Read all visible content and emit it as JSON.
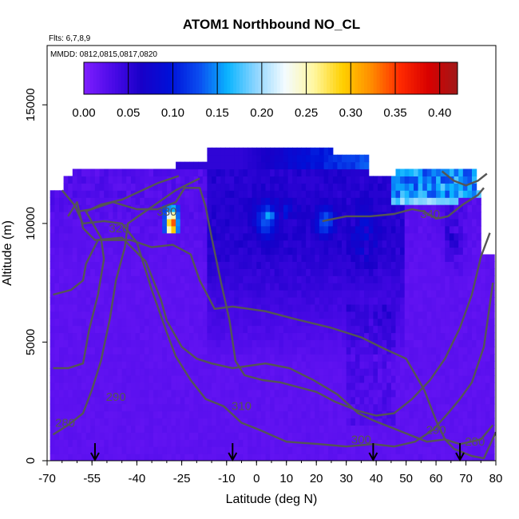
{
  "chart_data": {
    "type": "heatmap",
    "title": "ATOM1 Northbound NO_CL",
    "subtitle_flights": "Flts: 6,7,8,9",
    "subtitle_dates": "MMDD: 0812,0815,0817,0820",
    "xlabel": "Latitude (deg N)",
    "ylabel": "Altitude (m)",
    "xlim": [
      -70,
      80
    ],
    "ylim": [
      0,
      17500
    ],
    "x_ticks": [
      -70,
      -55,
      -40,
      -25,
      -10,
      0,
      10,
      20,
      30,
      40,
      50,
      60,
      70,
      80
    ],
    "y_ticks": [
      0,
      5000,
      10000,
      15000
    ],
    "colorbar": {
      "range": [
        0,
        0.42
      ],
      "ticks": [
        0.0,
        0.05,
        0.1,
        0.15,
        0.2,
        0.25,
        0.3,
        0.35,
        0.4
      ],
      "tick_labels": [
        "0.00",
        "0.05",
        "0.10",
        "0.15",
        "0.20",
        "0.25",
        "0.30",
        "0.35",
        "0.40"
      ],
      "colors": [
        "#7f1fff",
        "#4b0ae8",
        "#1800c8",
        "#0010d8",
        "#0a4cf0",
        "#0ab4ff",
        "#8fd6ff",
        "#f4fbff",
        "#fff7a0",
        "#ffd000",
        "#ff8c00",
        "#ff2a00",
        "#d80000",
        "#a01818"
      ]
    },
    "flight_profile_markers_lat": [
      -54,
      -8,
      39,
      68
    ],
    "contours": [
      {
        "level": "280",
        "label": "280",
        "points": [
          [
            -68,
            1100
          ],
          [
            -63,
            1500
          ],
          [
            -58,
            2000
          ],
          [
            -55,
            3000
          ],
          [
            -52,
            4200
          ],
          [
            -49,
            6000
          ],
          [
            -47,
            7600
          ],
          [
            -44,
            9000
          ],
          [
            -43,
            10000
          ],
          [
            -35,
            10700
          ],
          [
            -27,
            11400
          ],
          [
            -19,
            11900
          ]
        ]
      },
      {
        "level": "290",
        "label": "290",
        "points": [
          [
            -68,
            3900
          ],
          [
            -63,
            3900
          ],
          [
            -58,
            4100
          ],
          [
            -56,
            5500
          ],
          [
            -53,
            7000
          ],
          [
            -51,
            8500
          ],
          [
            -52,
            9400
          ],
          [
            -57,
            10500
          ],
          [
            -52,
            10800
          ],
          [
            -45,
            11000
          ],
          [
            -33,
            11700
          ],
          [
            -26,
            12000
          ]
        ]
      },
      {
        "level": "300",
        "label": "300",
        "points": [
          [
            -68,
            7000
          ],
          [
            -62,
            7200
          ],
          [
            -58,
            7600
          ],
          [
            -57,
            8300
          ],
          [
            -53,
            9300
          ],
          [
            -42,
            9300
          ],
          [
            -35,
            9000
          ],
          [
            -28,
            9100
          ],
          [
            -22,
            8700
          ],
          [
            -19,
            7600
          ],
          [
            -14,
            6400
          ],
          [
            -8,
            6500
          ],
          [
            3,
            6300
          ],
          [
            12,
            6000
          ],
          [
            25,
            5600
          ],
          [
            35,
            5200
          ],
          [
            43,
            4700
          ],
          [
            50,
            4300
          ],
          [
            56,
            3000
          ],
          [
            60,
            1700
          ],
          [
            63,
            900
          ],
          [
            66,
            500
          ],
          [
            72,
            200
          ],
          [
            76,
            100
          ],
          [
            80,
            1200
          ]
        ]
      },
      {
        "level": "310",
        "label": "310",
        "points": [
          [
            -63,
            10300
          ],
          [
            -60,
            10900
          ],
          [
            -58,
            9800
          ],
          [
            -54,
            9300
          ],
          [
            -45,
            9400
          ],
          [
            -37,
            8400
          ],
          [
            -32,
            6800
          ],
          [
            -30,
            5900
          ],
          [
            -25,
            4800
          ],
          [
            -20,
            4300
          ],
          [
            -15,
            4100
          ],
          [
            -8,
            3900
          ],
          [
            3,
            4100
          ],
          [
            11,
            3900
          ],
          [
            19,
            3400
          ],
          [
            27,
            2800
          ],
          [
            34,
            2000
          ],
          [
            39,
            1700
          ],
          [
            45,
            1400
          ],
          [
            51,
            1100
          ],
          [
            57,
            800
          ],
          [
            63,
            900
          ],
          [
            68,
            700
          ],
          [
            75,
            900
          ],
          [
            79,
            1500
          ]
        ]
      },
      {
        "level": "320",
        "label": "320",
        "points": [
          [
            -65,
            11400
          ],
          [
            -61,
            10800
          ],
          [
            -58,
            10000
          ],
          [
            -51,
            10100
          ],
          [
            -45,
            10000
          ],
          [
            -40,
            9200
          ],
          [
            -35,
            7200
          ],
          [
            -30,
            5400
          ],
          [
            -27,
            4400
          ],
          [
            -22,
            3400
          ],
          [
            -17,
            2600
          ],
          [
            -11,
            2300
          ],
          [
            -5,
            1600
          ],
          [
            1,
            1300
          ],
          [
            10,
            800
          ],
          [
            21,
            700
          ],
          [
            30,
            600
          ],
          [
            39,
            700
          ],
          [
            46,
            600
          ],
          [
            53,
            800
          ],
          [
            59,
            1300
          ],
          [
            64,
            2000
          ],
          [
            68,
            2600
          ],
          [
            72,
            3300
          ],
          [
            76,
            4800
          ],
          [
            79,
            7500
          ]
        ]
      },
      {
        "level": "330",
        "label": "330",
        "points": [
          [
            -60,
            10500
          ],
          [
            -55,
            10600
          ],
          [
            -48,
            10900
          ],
          [
            -40,
            10600
          ],
          [
            -33,
            10600
          ],
          [
            -27,
            10900
          ],
          [
            -24,
            11500
          ],
          [
            -19,
            11500
          ],
          [
            -17,
            10700
          ],
          [
            -15,
            9400
          ],
          [
            -12,
            7600
          ],
          [
            -9,
            5900
          ],
          [
            -7,
            4200
          ],
          [
            -4,
            3600
          ],
          [
            2,
            3400
          ],
          [
            8,
            3300
          ],
          [
            14,
            3100
          ],
          [
            20,
            2900
          ],
          [
            26,
            2500
          ],
          [
            34,
            2100
          ],
          [
            40,
            1900
          ],
          [
            46,
            2000
          ],
          [
            52,
            2600
          ],
          [
            58,
            3400
          ],
          [
            63,
            4300
          ],
          [
            68,
            5600
          ],
          [
            72,
            7000
          ],
          [
            75,
            8600
          ],
          [
            78,
            9600
          ]
        ]
      },
      {
        "level": "340",
        "label": "340",
        "points": [
          [
            22,
            10100
          ],
          [
            30,
            10300
          ],
          [
            38,
            10300
          ],
          [
            46,
            10400
          ],
          [
            52,
            10600
          ],
          [
            56,
            10500
          ],
          [
            60,
            10200
          ],
          [
            64,
            10300
          ],
          [
            69,
            10800
          ],
          [
            74,
            11200
          ],
          [
            76,
            11500
          ]
        ]
      },
      {
        "level": "340b",
        "label": "",
        "points": [
          [
            62,
            12200
          ],
          [
            66,
            11800
          ],
          [
            70,
            11600
          ],
          [
            74,
            11800
          ],
          [
            77,
            12100
          ]
        ]
      }
    ],
    "contour_labels": [
      {
        "text": "330",
        "lat": -30,
        "alt": 10500
      },
      {
        "text": "320",
        "lat": -46,
        "alt": 9800
      },
      {
        "text": "340",
        "lat": 58,
        "alt": 10400
      },
      {
        "text": "290",
        "lat": -47,
        "alt": 2700
      },
      {
        "text": "280",
        "lat": -64,
        "alt": 1600
      },
      {
        "text": "310",
        "lat": -5,
        "alt": 2300
      },
      {
        "text": "300",
        "lat": 35,
        "alt": 900
      },
      {
        "text": "290",
        "lat": 60,
        "alt": 1300
      },
      {
        "text": "280",
        "lat": 73,
        "alt": 800
      }
    ]
  }
}
